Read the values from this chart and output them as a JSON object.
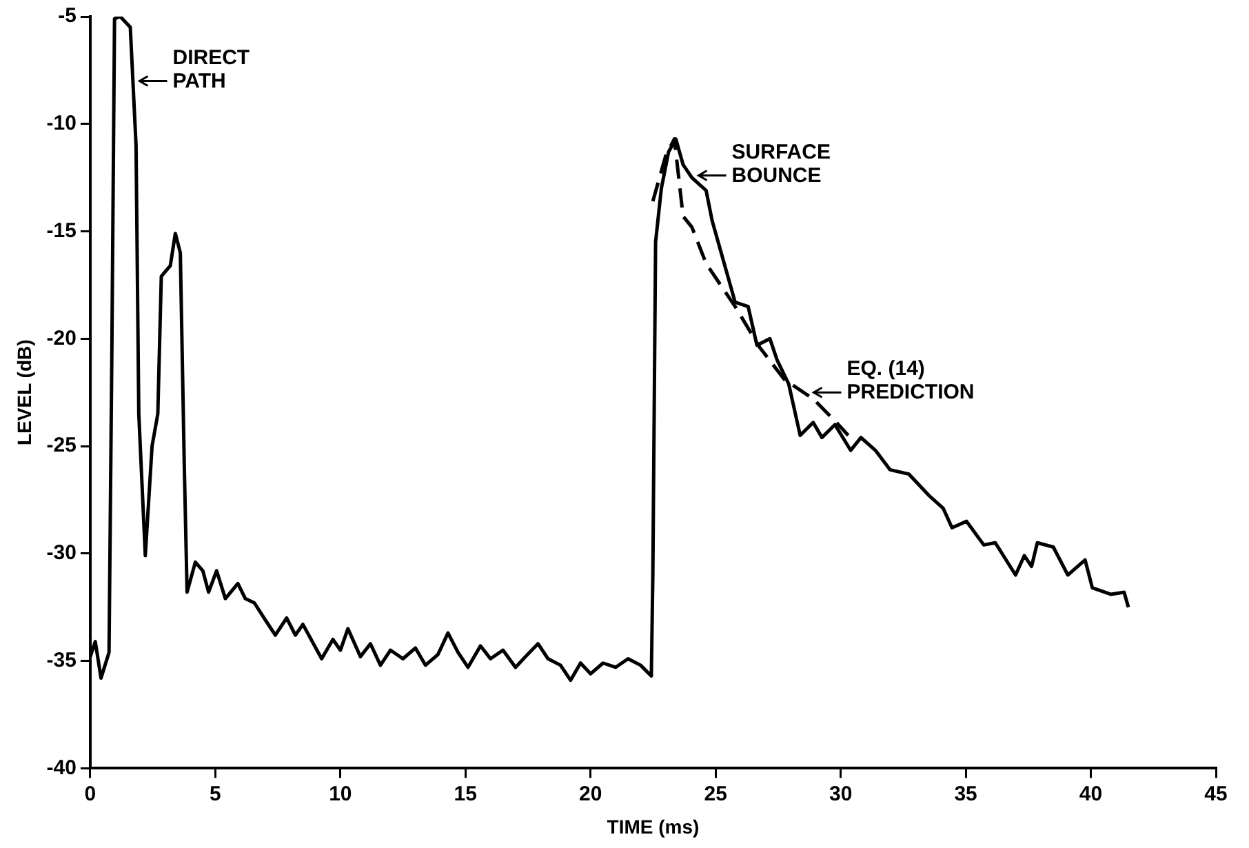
{
  "chart_data": {
    "type": "line",
    "xlabel": "TIME (ms)",
    "ylabel": "LEVEL (dB)",
    "xlim": [
      0,
      45
    ],
    "xticks": [
      0,
      5,
      10,
      15,
      20,
      25,
      30,
      35,
      40,
      45
    ],
    "ylim": [
      -40,
      -5
    ],
    "yticks": [
      -40,
      -35,
      -30,
      -25,
      -20,
      -15,
      -10,
      -5
    ],
    "grid": false,
    "legend": false,
    "marker": "none",
    "series": [
      {
        "color": "#000000",
        "line_style": "solid",
        "x": [
          0,
          0.2,
          0.43,
          0.75,
          0.86,
          0.97,
          1.2,
          1.6,
          1.83,
          1.94,
          2.2,
          2.47,
          2.7,
          2.84,
          3.2,
          3.4,
          3.6,
          3.76,
          3.87,
          4.2,
          4.5,
          4.73,
          5.05,
          5.4,
          5.9,
          6.2,
          6.56,
          7,
          7.4,
          7.85,
          8.2,
          8.5,
          9.25,
          9.7,
          10,
          10.3,
          10.8,
          11.2,
          11.6,
          12,
          12.5,
          13,
          13.4,
          13.9,
          14.3,
          14.7,
          15.1,
          15.6,
          16,
          16.5,
          17,
          17.4,
          17.9,
          18.3,
          18.8,
          19.2,
          19.6,
          20,
          20.5,
          21,
          21.5,
          22,
          22.43,
          22.49,
          22.6,
          22.83,
          23.12,
          23.41,
          23.7,
          24.05,
          24.62,
          24.86,
          25.78,
          26.3,
          26.65,
          27.17,
          27.46,
          27.92,
          28.38,
          28.9,
          29.25,
          29.77,
          30.4,
          30.81,
          31.39,
          31.97,
          32.72,
          33.53,
          34.1,
          34.45,
          35.03,
          35.72,
          36.18,
          36.99,
          37.34,
          37.63,
          37.86,
          38.5,
          39.08,
          39.77,
          40.06,
          40.81,
          41.33,
          41.5
        ],
        "values": [
          -34.8,
          -34.1,
          -35.8,
          -34.6,
          -21,
          -5.1,
          -5,
          -5.5,
          -11,
          -23.5,
          -30.1,
          -25,
          -23.5,
          -17.1,
          -16.6,
          -15.1,
          -16,
          -26,
          -31.8,
          -30.4,
          -30.8,
          -31.8,
          -30.8,
          -32.1,
          -31.4,
          -32.1,
          -32.3,
          -33.1,
          -33.8,
          -33,
          -33.8,
          -33.3,
          -34.9,
          -34,
          -34.5,
          -33.5,
          -34.8,
          -34.2,
          -35.2,
          -34.5,
          -34.9,
          -34.4,
          -35.2,
          -34.7,
          -33.7,
          -34.6,
          -35.3,
          -34.3,
          -34.9,
          -34.5,
          -35.3,
          -34.8,
          -34.2,
          -34.9,
          -35.2,
          -35.9,
          -35.1,
          -35.6,
          -35.1,
          -35.3,
          -34.9,
          -35.2,
          -35.7,
          -31,
          -15.5,
          -13,
          -11.3,
          -10.7,
          -11.9,
          -12.5,
          -13.1,
          -14.5,
          -18.3,
          -18.5,
          -20.3,
          -20,
          -21,
          -22.1,
          -24.5,
          -23.9,
          -24.6,
          -24,
          -25.2,
          -24.6,
          -25.2,
          -26.1,
          -26.3,
          -27.3,
          -27.9,
          -28.8,
          -28.5,
          -29.6,
          -29.5,
          -31,
          -30.1,
          -30.6,
          -29.5,
          -29.7,
          -31,
          -30.3,
          -31.6,
          -31.9,
          -31.8,
          -32.5
        ]
      },
      {
        "color": "#000000",
        "line_style": "dashed",
        "x": [
          22.49,
          23,
          23.35,
          23.7,
          24.05,
          24.62,
          25.78,
          26.76,
          27.75,
          28.9,
          29.83,
          30.3
        ],
        "values": [
          -13.6,
          -11.5,
          -10.7,
          -14.3,
          -14.8,
          -16.5,
          -18.5,
          -20.4,
          -21.9,
          -22.8,
          -23.9,
          -24.5
        ]
      }
    ],
    "annotations": [
      {
        "text": "DIRECT\nPATH",
        "x": 1.75,
        "y": -8
      },
      {
        "text": "SURFACE\nBOUNCE",
        "x": 24.1,
        "y": -12.4
      },
      {
        "text": "EQ. (14)\nPREDICTION",
        "x": 28.7,
        "y": -22.5
      }
    ]
  }
}
